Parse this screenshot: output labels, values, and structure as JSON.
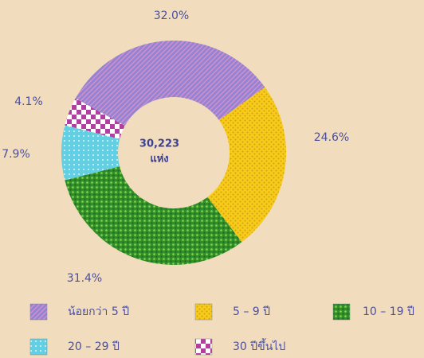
{
  "chart_data": {
    "type": "donut",
    "categories": [
      "น้อยกว่า 5 ปี",
      "5 – 9 ปี",
      "10 – 19 ปี",
      "20 – 29 ปี",
      "30 ปีขึ้นไป"
    ],
    "values": [
      32.0,
      24.6,
      31.4,
      7.9,
      4.1
    ],
    "value_labels": [
      "32.0%",
      "24.6%",
      "31.4%",
      "7.9%",
      "4.1%"
    ],
    "colors": [
      "#8a86d8",
      "#f6cc1c",
      "#2f8f2f",
      "#62d0e2",
      "#b23ea2"
    ],
    "center_value": "30,223",
    "center_unit": "แห่ง"
  }
}
